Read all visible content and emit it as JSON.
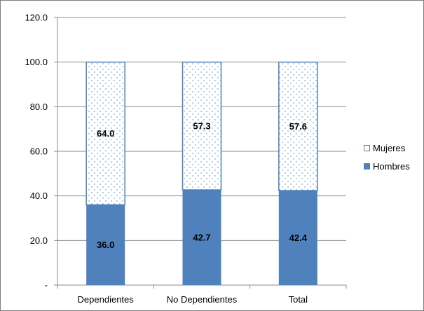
{
  "chart_data": {
    "type": "bar",
    "stacked": true,
    "title": "",
    "categories": [
      "Dependientes",
      "No Dependientes",
      "Total"
    ],
    "series": [
      {
        "name": "Hombres",
        "values": [
          36.0,
          42.7,
          42.4
        ],
        "color": "#4f81bd",
        "fill": "solid"
      },
      {
        "name": "Mujeres",
        "values": [
          64.0,
          57.3,
          57.6
        ],
        "color": "#4f81bd",
        "fill": "dotted"
      }
    ],
    "y_ticks": [
      "-",
      "20.0",
      "40.0",
      "60.0",
      "80.0",
      "100.0",
      "120.0"
    ],
    "ylim": [
      0,
      120
    ],
    "grid": true,
    "legend": "right",
    "xlabel": "",
    "ylabel": ""
  }
}
